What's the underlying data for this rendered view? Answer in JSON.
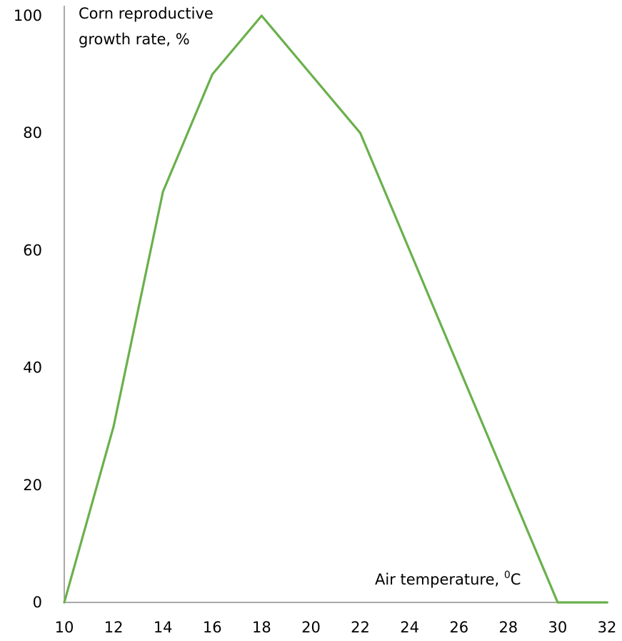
{
  "chart_data": {
    "type": "line",
    "title": "",
    "ylabel": [
      "Corn reproductive",
      "growth rate, %"
    ],
    "xlabel": {
      "prefix": "Air temperature, ",
      "superscript": "0",
      "suffix": "C"
    },
    "x": [
      10,
      12,
      14,
      16,
      18,
      20,
      22,
      24,
      26,
      28,
      30,
      32
    ],
    "series": [
      {
        "values": [
          0,
          30,
          70,
          90,
          100,
          90,
          80,
          60,
          40,
          20,
          0,
          0
        ]
      }
    ],
    "xticks": [
      "10",
      "12",
      "14",
      "16",
      "18",
      "20",
      "22",
      "24",
      "26",
      "28",
      "30",
      "32"
    ],
    "yticks": [
      "0",
      "20",
      "40",
      "60",
      "80",
      "100"
    ],
    "xlim": [
      10,
      32
    ],
    "ylim": [
      0,
      100
    ],
    "grid": false,
    "colors": {
      "line": "#6ab04c",
      "axis": "#8c8c8c"
    }
  }
}
